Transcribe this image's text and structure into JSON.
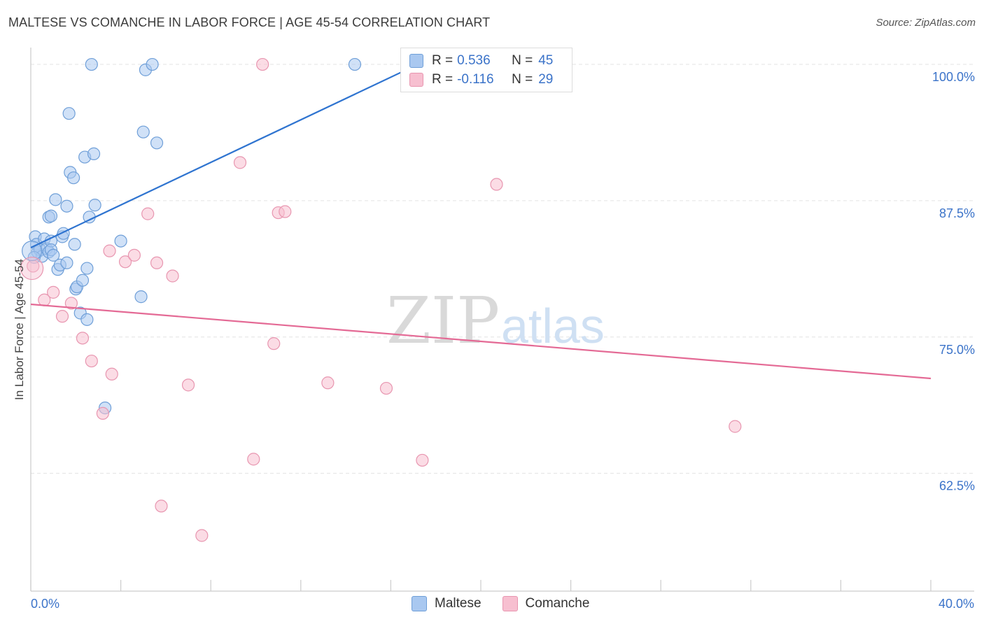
{
  "header": {
    "title": "MALTESE VS COMANCHE IN LABOR FORCE | AGE 45-54 CORRELATION CHART",
    "source": "Source: ZipAtlas.com"
  },
  "watermark": {
    "zip": "ZIP",
    "atlas": "atlas"
  },
  "legend_top": {
    "r_label": "R =",
    "n_label": "N =",
    "rows": [
      {
        "r": "0.536",
        "n": "45"
      },
      {
        "r": "-0.116",
        "n": "29"
      }
    ]
  },
  "colors": {
    "maltese_fill": "#a9c8f0",
    "maltese_stroke": "#6f9fd8",
    "maltese_line": "#2f74d0",
    "comanche_fill": "#f7bfd0",
    "comanche_stroke": "#e896b0",
    "comanche_line": "#e46a95",
    "axis_label": "#3b73c9",
    "grid": "#e3e3e3"
  },
  "chart_data": {
    "type": "scatter",
    "title": "MALTESE VS COMANCHE IN LABOR FORCE | AGE 45-54 CORRELATION CHART",
    "xlabel": "",
    "ylabel": "In Labor Force | Age 45-54",
    "xlim": [
      0,
      40
    ],
    "ylim": [
      51.7,
      101.8
    ],
    "x_tick_labels": [
      {
        "value": 0,
        "label": "0.0%"
      },
      {
        "value": 40,
        "label": "40.0%"
      }
    ],
    "y_tick_labels": [
      {
        "value": 100,
        "label": "100.0%"
      },
      {
        "value": 87.5,
        "label": "87.5%"
      },
      {
        "value": 75,
        "label": "75.0%"
      },
      {
        "value": 62.5,
        "label": "62.5%"
      }
    ],
    "y_gridlines": [
      100,
      87.5,
      75,
      62.5
    ],
    "grid": true,
    "legend_placement": "bottom-center",
    "series": [
      {
        "name": "Maltese",
        "color": "#a9c8f0",
        "trend": {
          "x": [
            0,
            17.2
          ],
          "y": [
            83.2,
            100.0
          ]
        },
        "points": [
          [
            0.2,
            84.2
          ],
          [
            0.25,
            83.5
          ],
          [
            0.3,
            82.8
          ],
          [
            0.4,
            83.0
          ],
          [
            0.5,
            82.4
          ],
          [
            0.6,
            84.0
          ],
          [
            0.7,
            83.1
          ],
          [
            0.8,
            82.8
          ],
          [
            0.9,
            83.8
          ],
          [
            0.9,
            83.0
          ],
          [
            0.8,
            86.0
          ],
          [
            0.9,
            86.1
          ],
          [
            1.0,
            82.5
          ],
          [
            1.1,
            87.6
          ],
          [
            1.2,
            81.2
          ],
          [
            1.3,
            81.6
          ],
          [
            1.4,
            84.2
          ],
          [
            1.45,
            84.5
          ],
          [
            1.6,
            81.8
          ],
          [
            1.6,
            87.0
          ],
          [
            1.7,
            95.5
          ],
          [
            1.75,
            90.1
          ],
          [
            1.9,
            89.6
          ],
          [
            1.95,
            83.5
          ],
          [
            2.0,
            79.4
          ],
          [
            2.05,
            79.6
          ],
          [
            2.2,
            77.2
          ],
          [
            2.3,
            80.2
          ],
          [
            2.4,
            91.5
          ],
          [
            2.5,
            81.3
          ],
          [
            2.5,
            76.6
          ],
          [
            2.6,
            86.0
          ],
          [
            2.7,
            100.0
          ],
          [
            2.8,
            91.8
          ],
          [
            2.85,
            87.1
          ],
          [
            3.3,
            68.5
          ],
          [
            4.0,
            83.8
          ],
          [
            4.9,
            78.7
          ],
          [
            5.0,
            93.8
          ],
          [
            5.1,
            99.5
          ],
          [
            5.4,
            100.0
          ],
          [
            5.6,
            92.8
          ],
          [
            14.4,
            100.0
          ],
          [
            21.7,
            100.0
          ],
          [
            0.15,
            82.3
          ]
        ]
      },
      {
        "name": "Comanche",
        "color": "#f7bfd0",
        "trend": {
          "x": [
            0,
            40
          ],
          "y": [
            78.0,
            71.2
          ]
        },
        "points": [
          [
            0.1,
            81.5
          ],
          [
            0.6,
            78.4
          ],
          [
            1.0,
            79.1
          ],
          [
            1.4,
            76.9
          ],
          [
            1.8,
            78.1
          ],
          [
            2.3,
            74.9
          ],
          [
            2.7,
            72.8
          ],
          [
            3.2,
            68.0
          ],
          [
            3.5,
            82.9
          ],
          [
            3.6,
            71.6
          ],
          [
            4.2,
            81.9
          ],
          [
            4.6,
            82.5
          ],
          [
            5.2,
            86.3
          ],
          [
            5.6,
            81.8
          ],
          [
            5.8,
            59.5
          ],
          [
            6.3,
            80.6
          ],
          [
            7.0,
            70.6
          ],
          [
            7.6,
            56.8
          ],
          [
            9.3,
            91.0
          ],
          [
            9.9,
            63.8
          ],
          [
            10.3,
            100.0
          ],
          [
            10.8,
            74.4
          ],
          [
            11.0,
            86.4
          ],
          [
            11.3,
            86.5
          ],
          [
            13.2,
            70.8
          ],
          [
            15.8,
            70.3
          ],
          [
            17.4,
            63.7
          ],
          [
            20.7,
            89.0
          ],
          [
            31.3,
            66.8
          ]
        ]
      }
    ]
  },
  "legend_bottom": [
    {
      "label": "Maltese"
    },
    {
      "label": "Comanche"
    }
  ]
}
